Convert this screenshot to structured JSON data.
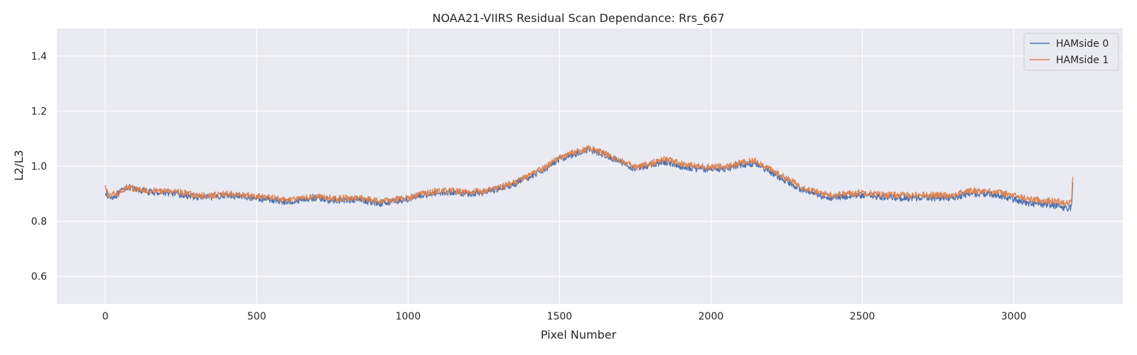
{
  "chart_data": {
    "type": "line",
    "title": "NOAA21-VIIRS Residual Scan Dependance: Rrs_667",
    "xlabel": "Pixel Number",
    "ylabel": "L2/L3",
    "xlim": [
      -160,
      3360
    ],
    "ylim": [
      0.5,
      1.5
    ],
    "xticks": [
      0,
      500,
      1000,
      1500,
      2000,
      2500,
      3000
    ],
    "yticks": [
      0.6,
      0.8,
      1.0,
      1.2,
      1.4
    ],
    "xtick_labels": [
      "0",
      "500",
      "1000",
      "1500",
      "2000",
      "2500",
      "3000"
    ],
    "ytick_labels": [
      "0.6",
      "0.8",
      "1.0",
      "1.2",
      "1.4"
    ],
    "grid": true,
    "legend_position": "top-right",
    "background": "#eaeaf2",
    "series": [
      {
        "name": "HAMside 0",
        "color": "#4c72b0",
        "noise": 0.012,
        "x": [
          0,
          10,
          40,
          70,
          100,
          150,
          200,
          250,
          300,
          350,
          400,
          450,
          500,
          550,
          600,
          650,
          700,
          750,
          800,
          850,
          900,
          950,
          1000,
          1050,
          1100,
          1150,
          1200,
          1250,
          1300,
          1350,
          1400,
          1450,
          1500,
          1550,
          1600,
          1650,
          1700,
          1750,
          1800,
          1850,
          1900,
          1950,
          2000,
          2050,
          2100,
          2150,
          2200,
          2250,
          2300,
          2350,
          2400,
          2450,
          2500,
          2550,
          2600,
          2650,
          2700,
          2750,
          2800,
          2850,
          2900,
          2950,
          3000,
          3050,
          3100,
          3150,
          3180,
          3190,
          3195
        ],
        "y": [
          0.91,
          0.885,
          0.895,
          0.925,
          0.915,
          0.905,
          0.905,
          0.895,
          0.888,
          0.888,
          0.895,
          0.89,
          0.883,
          0.878,
          0.87,
          0.88,
          0.885,
          0.875,
          0.878,
          0.877,
          0.865,
          0.872,
          0.88,
          0.895,
          0.905,
          0.905,
          0.9,
          0.905,
          0.918,
          0.935,
          0.96,
          0.99,
          1.025,
          1.045,
          1.06,
          1.04,
          1.015,
          0.99,
          1.005,
          1.015,
          1.0,
          0.99,
          0.99,
          0.99,
          1.005,
          1.01,
          0.975,
          0.945,
          0.915,
          0.895,
          0.885,
          0.89,
          0.895,
          0.89,
          0.885,
          0.885,
          0.885,
          0.885,
          0.885,
          0.9,
          0.9,
          0.895,
          0.88,
          0.865,
          0.86,
          0.855,
          0.845,
          0.85,
          0.93
        ]
      },
      {
        "name": "HAMside 1",
        "color": "#dd8452",
        "noise": 0.012,
        "x": [
          0,
          10,
          40,
          70,
          100,
          150,
          200,
          250,
          300,
          350,
          400,
          450,
          500,
          550,
          600,
          650,
          700,
          750,
          800,
          850,
          900,
          950,
          1000,
          1050,
          1100,
          1150,
          1200,
          1250,
          1300,
          1350,
          1400,
          1450,
          1500,
          1550,
          1600,
          1650,
          1700,
          1750,
          1800,
          1850,
          1900,
          1950,
          2000,
          2050,
          2100,
          2150,
          2200,
          2250,
          2300,
          2350,
          2400,
          2450,
          2500,
          2550,
          2600,
          2650,
          2700,
          2750,
          2800,
          2850,
          2900,
          2950,
          3000,
          3050,
          3100,
          3150,
          3180,
          3190,
          3195
        ],
        "y": [
          0.92,
          0.895,
          0.9,
          0.925,
          0.915,
          0.91,
          0.91,
          0.905,
          0.893,
          0.893,
          0.9,
          0.895,
          0.89,
          0.885,
          0.876,
          0.885,
          0.89,
          0.882,
          0.885,
          0.883,
          0.872,
          0.878,
          0.885,
          0.9,
          0.91,
          0.91,
          0.905,
          0.91,
          0.923,
          0.94,
          0.965,
          0.995,
          1.03,
          1.05,
          1.065,
          1.045,
          1.02,
          0.995,
          1.01,
          1.025,
          1.01,
          1.0,
          0.998,
          0.998,
          1.012,
          1.02,
          0.985,
          0.955,
          0.925,
          0.905,
          0.895,
          0.9,
          0.905,
          0.898,
          0.895,
          0.895,
          0.895,
          0.895,
          0.895,
          0.91,
          0.91,
          0.905,
          0.893,
          0.88,
          0.875,
          0.872,
          0.865,
          0.87,
          0.955
        ]
      }
    ]
  }
}
